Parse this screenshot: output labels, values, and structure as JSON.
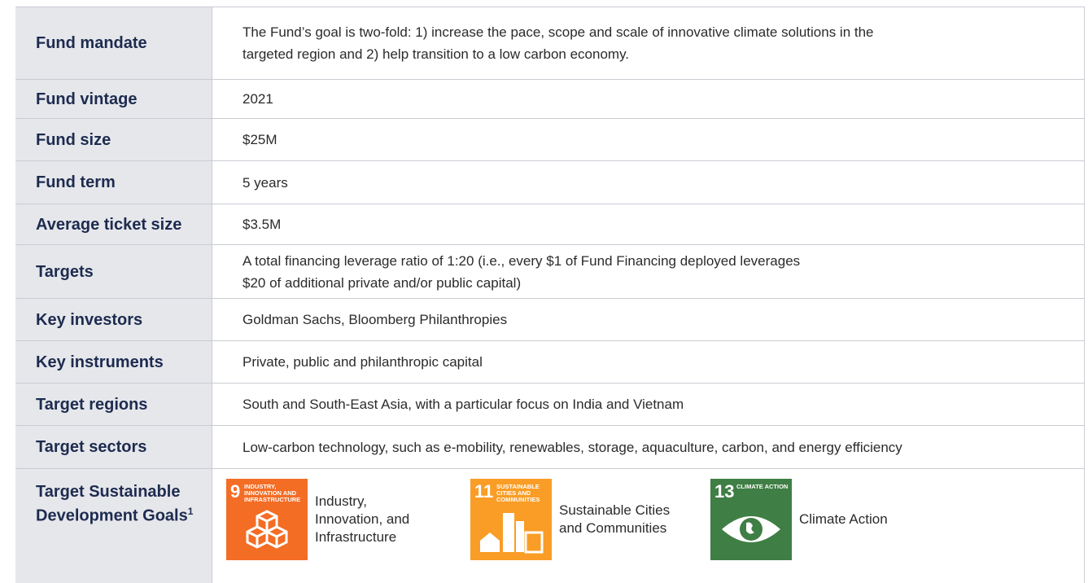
{
  "table": {
    "rows": [
      {
        "label": "Fund mandate",
        "value": [
          "The Fund’s goal is two-fold: 1) increase the pace, scope and scale of innovative climate solutions in the",
          "targeted region and 2) help transition to a low carbon economy."
        ]
      },
      {
        "label": "Fund vintage",
        "value": [
          "2021"
        ]
      },
      {
        "label": "Fund size",
        "value": [
          "$25M"
        ]
      },
      {
        "label": "Fund term",
        "value": [
          "5 years"
        ]
      },
      {
        "label": "Average ticket size",
        "value": [
          "$3.5M"
        ]
      },
      {
        "label": "Targets",
        "value": [
          "A total financing leverage ratio of 1:20 (i.e., every $1 of Fund Financing deployed leverages",
          "$20 of additional private and/or public capital)"
        ]
      },
      {
        "label": "Key investors",
        "value": [
          "Goldman Sachs, Bloomberg Philanthropies"
        ]
      },
      {
        "label": "Key instruments",
        "value": [
          "Private, public and philanthropic capital"
        ]
      },
      {
        "label": "Target regions",
        "value": [
          "South and South-East Asia, with a particular focus on India and Vietnam"
        ]
      },
      {
        "label": "Target sectors",
        "value": [
          "Low-carbon technology, such as e-mobility, renewables, storage, aquaculture, carbon, and energy efficiency"
        ]
      }
    ],
    "sdg_row": {
      "label": "Target Sustainable Development Goals",
      "footnote": "1",
      "goals": [
        {
          "number": "9",
          "icon_title": "INDUSTRY, INNOVATION AND INFRASTRUCTURE",
          "label_lines": [
            "Industry,",
            "Innovation, and",
            "Infrastructure"
          ]
        },
        {
          "number": "11",
          "icon_title": "SUSTAINABLE CITIES AND COMMUNITIES",
          "label_lines": [
            "Sustainable Cities",
            "and Communities"
          ]
        },
        {
          "number": "13",
          "icon_title": "CLIMATE ACTION",
          "label_lines": [
            "Climate Action"
          ]
        }
      ]
    }
  }
}
